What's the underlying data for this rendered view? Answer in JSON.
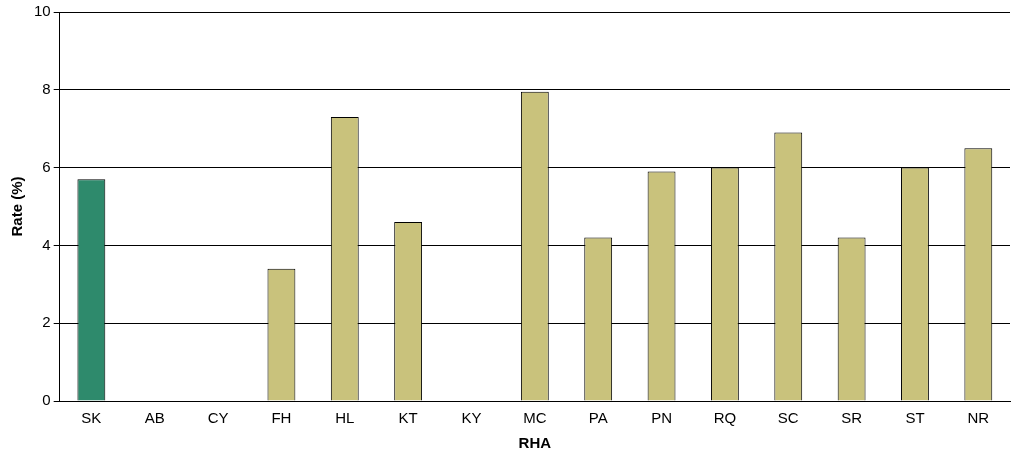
{
  "chart_data": {
    "type": "bar",
    "xlabel": "RHA",
    "ylabel": "Rate (%)",
    "categories": [
      "SK",
      "AB",
      "CY",
      "FH",
      "HL",
      "KT",
      "KY",
      "MC",
      "PA",
      "PN",
      "RQ",
      "SC",
      "SR",
      "ST",
      "NR"
    ],
    "values": [
      5.7,
      null,
      null,
      3.4,
      7.3,
      4.6,
      null,
      7.95,
      4.2,
      5.9,
      6.0,
      6.9,
      4.2,
      6.0,
      6.5
    ],
    "colors": [
      "#2e8a6c",
      "#c9c27c",
      "#c9c27c",
      "#c9c27c",
      "#c9c27c",
      "#c9c27c",
      "#c9c27c",
      "#c9c27c",
      "#c9c27c",
      "#c9c27c",
      "#c9c27c",
      "#c9c27c",
      "#c9c27c",
      "#c9c27c",
      "#c9c27c"
    ],
    "ylim": [
      0,
      10
    ],
    "yticks": [
      0,
      2,
      4,
      6,
      8,
      10
    ],
    "grid": "y",
    "legend": false
  }
}
